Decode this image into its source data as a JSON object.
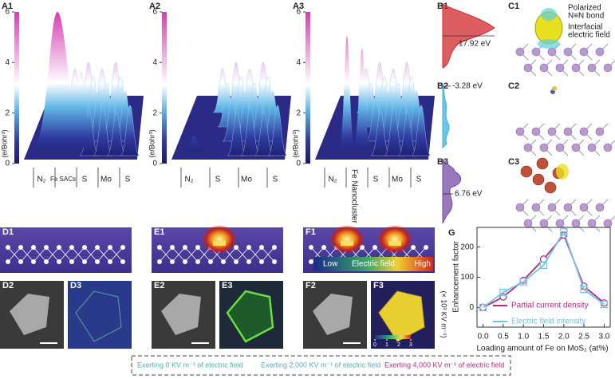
{
  "a_panels": [
    {
      "label": "A1",
      "colorbar_ticks": [
        6,
        4,
        2,
        0
      ],
      "colorbar_label": "(e/Bohr³)",
      "axis_labels": [
        "N₂",
        "Fe SACs",
        "S",
        "Mo",
        "S"
      ]
    },
    {
      "label": "A2",
      "colorbar_ticks": [
        6,
        4,
        2,
        0
      ],
      "colorbar_label": "(e/Bohr³)",
      "axis_labels": [
        "N₂",
        "S",
        "Mo",
        "S"
      ]
    },
    {
      "label": "A3",
      "colorbar_ticks": [
        6,
        4,
        2,
        0
      ],
      "colorbar_label": "(e/Bohr³)",
      "axis_labels": [
        "N₂",
        "Fe Nanocluster",
        "S",
        "Mo",
        "S"
      ]
    }
  ],
  "b_panels": [
    {
      "label": "B1",
      "annotation": "17.92 eV"
    },
    {
      "label": "B2",
      "annotation": "-3.28 eV"
    },
    {
      "label": "B3",
      "annotation": "6.76 eV"
    }
  ],
  "c_panels": [
    {
      "label": "C1",
      "annotations": [
        [
          "Polarized",
          "N≡N bond"
        ],
        [
          "Interfacial",
          "electric field"
        ]
      ]
    },
    {
      "label": "C2"
    },
    {
      "label": "C3"
    }
  ],
  "field_panels": [
    {
      "labels": [
        "D1",
        "D2",
        "D3"
      ]
    },
    {
      "labels": [
        "E1",
        "E2",
        "E3"
      ]
    },
    {
      "labels": [
        "F1",
        "F2",
        "F3"
      ]
    }
  ],
  "field_scale": {
    "low": "Low",
    "label": "Electric field",
    "high": "High"
  },
  "f3_colorbar": {
    "ticks": [
      0,
      1,
      2,
      3
    ],
    "label": "(× 10³ KV m⁻¹)"
  },
  "legend_box": [
    "Exerting 0 KV m⁻¹ of electric field",
    "Exerting 2,000 KV m⁻¹ of electric field",
    "Exerting 4,000 KV m⁻¹ of electric field"
  ],
  "chart_data": {
    "type": "line",
    "label": "G",
    "x_label": "Loading amount of Fe on MoS₂ (at%)",
    "y_label": "Enhancement factor",
    "x": [
      0,
      0.5,
      1,
      1.5,
      2,
      2.5,
      3
    ],
    "xlim": [
      -0.15,
      3.15
    ],
    "xticks": [
      {
        "value": 0,
        "label": "0.0"
      },
      {
        "value": 0.5,
        "label": "0.5"
      },
      {
        "value": 1,
        "label": "1.0"
      },
      {
        "value": 1.5,
        "label": "1.5"
      },
      {
        "value": 2,
        "label": "2.0"
      },
      {
        "value": 2.5,
        "label": "2.5"
      },
      {
        "value": 3,
        "label": "3.0"
      }
    ],
    "ylim": [
      -65,
      265
    ],
    "yticks": [
      0,
      100,
      200
    ],
    "series": [
      {
        "name": "Partial current density",
        "color": "#b0297f",
        "marker": "circle",
        "values": [
          0,
          35,
          90,
          160,
          240,
          70,
          15
        ]
      },
      {
        "name": "Electric field intensity",
        "color": "#74c2e4",
        "marker": "square",
        "values": [
          0,
          50,
          85,
          140,
          250,
          60,
          10
        ]
      }
    ]
  }
}
